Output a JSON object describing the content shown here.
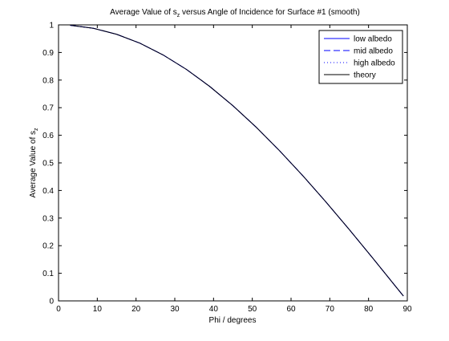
{
  "chart_data": {
    "type": "line",
    "title_main": "Average Value of s",
    "title_sub": "z",
    "title_rest": " versus Angle of Incidence for Surface #1 (smooth)",
    "xlabel": "Phi / degrees",
    "ylabel_main": "Average Value of s",
    "ylabel_sub": "z",
    "xlim": [
      0,
      90
    ],
    "ylim": [
      0,
      1
    ],
    "xticks": [
      "0",
      "10",
      "20",
      "30",
      "40",
      "50",
      "60",
      "70",
      "80",
      "90"
    ],
    "yticks": [
      "0",
      "0.1",
      "0.2",
      "0.3",
      "0.4",
      "0.5",
      "0.6",
      "0.7",
      "0.8",
      "0.9",
      "1"
    ],
    "grid": false,
    "legend_position": "top-right",
    "x": [
      3,
      9,
      15,
      21,
      27,
      33,
      39,
      45,
      51,
      57,
      63,
      69,
      75,
      81,
      87,
      89
    ],
    "series": [
      {
        "name": "low albedo",
        "style": "solid",
        "color": "#0000ff",
        "values": [
          0.9986,
          0.9877,
          0.9659,
          0.9336,
          0.891,
          0.8387,
          0.7771,
          0.7071,
          0.6293,
          0.5446,
          0.454,
          0.3584,
          0.2588,
          0.1564,
          0.0523,
          0.0175
        ]
      },
      {
        "name": "mid albedo",
        "style": "dashed",
        "color": "#0000ff",
        "values": [
          0.9986,
          0.9877,
          0.9659,
          0.9336,
          0.891,
          0.8387,
          0.7771,
          0.7071,
          0.6293,
          0.5446,
          0.454,
          0.3584,
          0.2588,
          0.1564,
          0.0523,
          0.0175
        ]
      },
      {
        "name": "high albedo",
        "style": "dotted",
        "color": "#0000ff",
        "values": [
          0.9986,
          0.9877,
          0.9659,
          0.9336,
          0.891,
          0.8387,
          0.7771,
          0.7071,
          0.6293,
          0.5446,
          0.454,
          0.3584,
          0.2588,
          0.1564,
          0.0523,
          0.0175
        ]
      },
      {
        "name": "theory",
        "style": "solid",
        "color": "#000000",
        "values": [
          0.9986,
          0.9877,
          0.9659,
          0.9336,
          0.891,
          0.8387,
          0.7771,
          0.7071,
          0.6293,
          0.5446,
          0.454,
          0.3584,
          0.2588,
          0.1564,
          0.0523,
          0.0175
        ]
      }
    ]
  }
}
